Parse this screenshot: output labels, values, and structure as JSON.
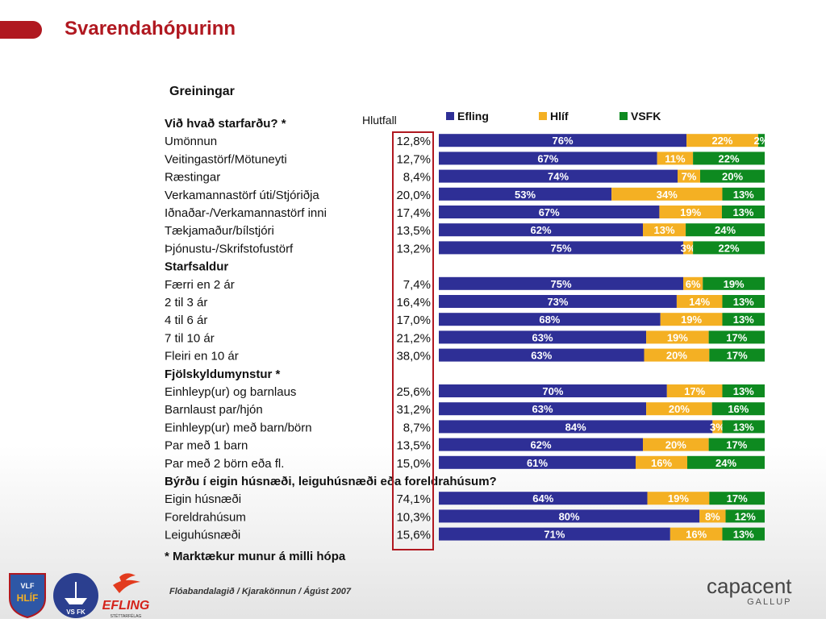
{
  "page": {
    "title": "Svarendahópurinn",
    "footer": "Flóabandalagið  / Kjarakönnun / Ágúst 2007",
    "brand": "capacent",
    "brand_sub": "GALLUP",
    "logos": [
      {
        "name": "VLF Hlíf",
        "text": "VLF HLÍF"
      },
      {
        "name": "VSFK",
        "text": "VS FK"
      },
      {
        "name": "Efling",
        "text": "EFLING",
        "sub": "STÉTTARFÉLAG"
      }
    ]
  },
  "colors": {
    "Efling": "#2e2f96",
    "Hlíf": "#f4b023",
    "VSFK": "#0e8a20",
    "title": "#b01820",
    "highlight": "#b01820"
  },
  "chart_data": {
    "type": "bar",
    "stacked": true,
    "orientation": "horizontal",
    "title": "Greiningar",
    "col_header": "Hlutfall",
    "legend": [
      "Efling",
      "Hlíf",
      "VSFK"
    ],
    "footnote": "* Marktækur munur á milli hópa",
    "groups": [
      {
        "header": "Við hvað starfarðu? *",
        "rows": [
          {
            "label": "Umönnun",
            "share": "12,8%",
            "values": [
              76,
              22,
              2
            ]
          },
          {
            "label": "Veitingastörf/Mötuneyti",
            "share": "12,7%",
            "values": [
              67,
              11,
              22
            ]
          },
          {
            "label": "Ræstingar",
            "share": "8,4%",
            "values": [
              74,
              7,
              20
            ]
          },
          {
            "label": "Verkamannastörf úti/Stjóriðja",
            "share": "20,0%",
            "values": [
              53,
              34,
              13
            ]
          },
          {
            "label": "Iðnaðar-/Verkamannastörf inni",
            "share": "17,4%",
            "values": [
              67,
              19,
              13
            ]
          },
          {
            "label": "Tækjamaður/bílstjóri",
            "share": "13,5%",
            "values": [
              62,
              13,
              24
            ]
          },
          {
            "label": "Þjónustu-/Skrifstofustörf",
            "share": "13,2%",
            "values": [
              75,
              3,
              22
            ]
          }
        ]
      },
      {
        "header": "Starfsaldur",
        "rows": [
          {
            "label": "Færri en 2 ár",
            "share": "7,4%",
            "values": [
              75,
              6,
              19
            ]
          },
          {
            "label": "2 til 3 ár",
            "share": "16,4%",
            "values": [
              73,
              14,
              13
            ]
          },
          {
            "label": "4 til 6 ár",
            "share": "17,0%",
            "values": [
              68,
              19,
              13
            ]
          },
          {
            "label": "7 til 10 ár",
            "share": "21,2%",
            "values": [
              63,
              19,
              17
            ]
          },
          {
            "label": "Fleiri en 10 ár",
            "share": "38,0%",
            "values": [
              63,
              20,
              17
            ]
          }
        ]
      },
      {
        "header": "Fjölskyldumynstur *",
        "rows": [
          {
            "label": "Einhleyp(ur) og barnlaus",
            "share": "25,6%",
            "values": [
              70,
              17,
              13
            ]
          },
          {
            "label": "Barnlaust par/hjón",
            "share": "31,2%",
            "values": [
              63,
              20,
              16
            ]
          },
          {
            "label": "Einhleyp(ur) með barn/börn",
            "share": "8,7%",
            "values": [
              84,
              3,
              13
            ]
          },
          {
            "label": "Par með 1 barn",
            "share": "13,5%",
            "values": [
              62,
              20,
              17
            ]
          },
          {
            "label": "Par með 2 börn eða fl.",
            "share": "15,0%",
            "values": [
              61,
              16,
              24
            ]
          }
        ]
      },
      {
        "header": "Býrðu í eigin húsnæði, leiguhúsnæði eða foreldrahúsum?",
        "rows": [
          {
            "label": "Eigin húsnæði",
            "share": "74,1%",
            "values": [
              64,
              19,
              17
            ]
          },
          {
            "label": "Foreldrahúsum",
            "share": "10,3%",
            "values": [
              80,
              8,
              12
            ]
          },
          {
            "label": "Leiguhúsnæði",
            "share": "15,6%",
            "values": [
              71,
              16,
              13
            ]
          }
        ]
      }
    ]
  }
}
